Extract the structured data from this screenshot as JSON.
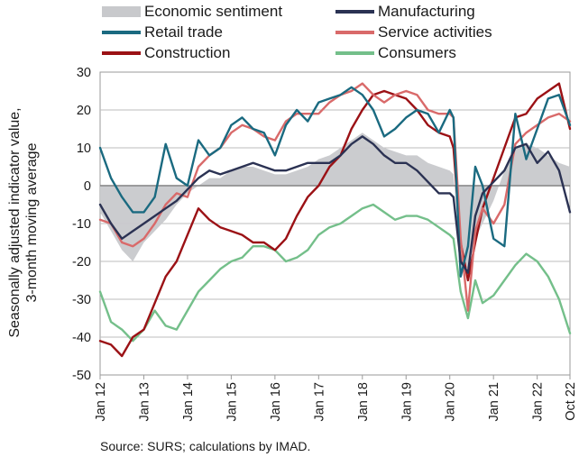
{
  "chart_data": {
    "type": "line",
    "ylabel": "Seasonally adjusted indicator value,\n3-month moving average",
    "xlabel": "",
    "ylim": [
      -50,
      30
    ],
    "yticks": [
      30,
      20,
      10,
      0,
      -10,
      -20,
      -30,
      -40,
      -50
    ],
    "xlim": [
      "2012-01",
      "2022-10"
    ],
    "x_ticks": [
      "Jan 12",
      "Jan 13",
      "Jan 14",
      "Jan 15",
      "Jan 16",
      "Jan 17",
      "Jan 18",
      "Jan 19",
      "Jan 20",
      "Jan 21",
      "Jan 22",
      "Oct 22"
    ],
    "grid": "horizontal",
    "legend_placement": "top",
    "source": "Source: SURS; calculations by IMAD.",
    "series": [
      {
        "name": "Economic sentiment",
        "style": "area",
        "color": "#c8c9cc",
        "points": [
          [
            "2012-01",
            -7
          ],
          [
            "2012-04",
            -12
          ],
          [
            "2012-07",
            -17
          ],
          [
            "2012-10",
            -20
          ],
          [
            "2013-01",
            -15
          ],
          [
            "2013-04",
            -12
          ],
          [
            "2013-07",
            -9
          ],
          [
            "2013-10",
            -5
          ],
          [
            "2014-01",
            -2
          ],
          [
            "2014-04",
            0
          ],
          [
            "2014-07",
            2
          ],
          [
            "2014-10",
            2
          ],
          [
            "2015-01",
            4
          ],
          [
            "2015-04",
            5
          ],
          [
            "2015-07",
            5
          ],
          [
            "2015-10",
            4
          ],
          [
            "2016-01",
            3
          ],
          [
            "2016-04",
            3
          ],
          [
            "2016-07",
            4
          ],
          [
            "2016-10",
            5
          ],
          [
            "2017-01",
            7
          ],
          [
            "2017-04",
            8
          ],
          [
            "2017-07",
            10
          ],
          [
            "2017-10",
            12
          ],
          [
            "2018-01",
            14
          ],
          [
            "2018-04",
            12
          ],
          [
            "2018-07",
            10
          ],
          [
            "2018-10",
            9
          ],
          [
            "2019-01",
            8
          ],
          [
            "2019-04",
            8
          ],
          [
            "2019-07",
            6
          ],
          [
            "2019-10",
            5
          ],
          [
            "2020-01",
            4
          ],
          [
            "2020-02",
            3
          ],
          [
            "2020-04",
            -20
          ],
          [
            "2020-06",
            -22
          ],
          [
            "2020-08",
            -14
          ],
          [
            "2020-10",
            -10
          ],
          [
            "2021-01",
            -4
          ],
          [
            "2021-04",
            4
          ],
          [
            "2021-07",
            10
          ],
          [
            "2021-10",
            11
          ],
          [
            "2022-01",
            10
          ],
          [
            "2022-04",
            8
          ],
          [
            "2022-07",
            6
          ],
          [
            "2022-10",
            5
          ]
        ]
      },
      {
        "name": "Manufacturing",
        "color": "#2b3253",
        "points": [
          [
            "2012-01",
            -5
          ],
          [
            "2012-04",
            -10
          ],
          [
            "2012-07",
            -14
          ],
          [
            "2012-10",
            -12
          ],
          [
            "2013-01",
            -10
          ],
          [
            "2013-04",
            -8
          ],
          [
            "2013-07",
            -6
          ],
          [
            "2013-10",
            -4
          ],
          [
            "2014-01",
            -1
          ],
          [
            "2014-04",
            2
          ],
          [
            "2014-07",
            4
          ],
          [
            "2014-10",
            3
          ],
          [
            "2015-01",
            4
          ],
          [
            "2015-04",
            5
          ],
          [
            "2015-07",
            6
          ],
          [
            "2015-10",
            5
          ],
          [
            "2016-01",
            4
          ],
          [
            "2016-04",
            4
          ],
          [
            "2016-07",
            5
          ],
          [
            "2016-10",
            6
          ],
          [
            "2017-01",
            6
          ],
          [
            "2017-04",
            6
          ],
          [
            "2017-07",
            8
          ],
          [
            "2017-10",
            11
          ],
          [
            "2018-01",
            13
          ],
          [
            "2018-04",
            11
          ],
          [
            "2018-07",
            8
          ],
          [
            "2018-10",
            6
          ],
          [
            "2019-01",
            6
          ],
          [
            "2019-04",
            4
          ],
          [
            "2019-07",
            1
          ],
          [
            "2019-10",
            -2
          ],
          [
            "2020-01",
            -2
          ],
          [
            "2020-02",
            -3
          ],
          [
            "2020-04",
            -20
          ],
          [
            "2020-06",
            -23
          ],
          [
            "2020-08",
            -8
          ],
          [
            "2020-10",
            -2
          ],
          [
            "2021-01",
            1
          ],
          [
            "2021-04",
            4
          ],
          [
            "2021-07",
            10
          ],
          [
            "2021-10",
            11
          ],
          [
            "2022-01",
            6
          ],
          [
            "2022-04",
            9
          ],
          [
            "2022-07",
            4
          ],
          [
            "2022-10",
            -7
          ]
        ]
      },
      {
        "name": "Retail trade",
        "color": "#1a6a80",
        "points": [
          [
            "2012-01",
            10
          ],
          [
            "2012-04",
            2
          ],
          [
            "2012-07",
            -3
          ],
          [
            "2012-10",
            -7
          ],
          [
            "2013-01",
            -7
          ],
          [
            "2013-04",
            -3
          ],
          [
            "2013-07",
            11
          ],
          [
            "2013-10",
            2
          ],
          [
            "2014-01",
            0
          ],
          [
            "2014-04",
            12
          ],
          [
            "2014-07",
            8
          ],
          [
            "2014-10",
            10
          ],
          [
            "2015-01",
            16
          ],
          [
            "2015-04",
            18
          ],
          [
            "2015-07",
            15
          ],
          [
            "2015-10",
            14
          ],
          [
            "2016-01",
            8
          ],
          [
            "2016-04",
            16
          ],
          [
            "2016-07",
            20
          ],
          [
            "2016-10",
            17
          ],
          [
            "2017-01",
            22
          ],
          [
            "2017-04",
            23
          ],
          [
            "2017-07",
            24
          ],
          [
            "2017-10",
            26
          ],
          [
            "2018-01",
            24
          ],
          [
            "2018-04",
            20
          ],
          [
            "2018-07",
            13
          ],
          [
            "2018-10",
            15
          ],
          [
            "2019-01",
            18
          ],
          [
            "2019-04",
            20
          ],
          [
            "2019-07",
            19
          ],
          [
            "2019-10",
            14
          ],
          [
            "2020-01",
            20
          ],
          [
            "2020-02",
            18
          ],
          [
            "2020-04",
            -24
          ],
          [
            "2020-06",
            -16
          ],
          [
            "2020-08",
            5
          ],
          [
            "2020-10",
            0
          ],
          [
            "2021-01",
            -14
          ],
          [
            "2021-04",
            -16
          ],
          [
            "2021-07",
            19
          ],
          [
            "2021-10",
            7
          ],
          [
            "2022-01",
            15
          ],
          [
            "2022-04",
            23
          ],
          [
            "2022-07",
            24
          ],
          [
            "2022-10",
            16
          ]
        ]
      },
      {
        "name": "Service activities",
        "color": "#d96a6a",
        "points": [
          [
            "2012-01",
            -9
          ],
          [
            "2012-04",
            -10
          ],
          [
            "2012-07",
            -15
          ],
          [
            "2012-10",
            -16
          ],
          [
            "2013-01",
            -14
          ],
          [
            "2013-04",
            -10
          ],
          [
            "2013-07",
            -5
          ],
          [
            "2013-10",
            -2
          ],
          [
            "2014-01",
            -3
          ],
          [
            "2014-04",
            5
          ],
          [
            "2014-07",
            8
          ],
          [
            "2014-10",
            10
          ],
          [
            "2015-01",
            14
          ],
          [
            "2015-04",
            16
          ],
          [
            "2015-07",
            15
          ],
          [
            "2015-10",
            13
          ],
          [
            "2016-01",
            12
          ],
          [
            "2016-04",
            17
          ],
          [
            "2016-07",
            19
          ],
          [
            "2016-10",
            19
          ],
          [
            "2017-01",
            19
          ],
          [
            "2017-04",
            22
          ],
          [
            "2017-07",
            24
          ],
          [
            "2017-10",
            25
          ],
          [
            "2018-01",
            27
          ],
          [
            "2018-04",
            24
          ],
          [
            "2018-07",
            22
          ],
          [
            "2018-10",
            24
          ],
          [
            "2019-01",
            25
          ],
          [
            "2019-04",
            24
          ],
          [
            "2019-07",
            20
          ],
          [
            "2019-10",
            19
          ],
          [
            "2020-01",
            19
          ],
          [
            "2020-02",
            18
          ],
          [
            "2020-04",
            -14
          ],
          [
            "2020-06",
            -33
          ],
          [
            "2020-08",
            -12
          ],
          [
            "2020-10",
            -6
          ],
          [
            "2021-01",
            -10
          ],
          [
            "2021-04",
            -5
          ],
          [
            "2021-07",
            11
          ],
          [
            "2021-10",
            14
          ],
          [
            "2022-01",
            16
          ],
          [
            "2022-04",
            18
          ],
          [
            "2022-07",
            19
          ],
          [
            "2022-10",
            17
          ]
        ]
      },
      {
        "name": "Construction",
        "color": "#9b1115",
        "points": [
          [
            "2012-01",
            -41
          ],
          [
            "2012-04",
            -42
          ],
          [
            "2012-07",
            -45
          ],
          [
            "2012-10",
            -40
          ],
          [
            "2013-01",
            -38
          ],
          [
            "2013-04",
            -31
          ],
          [
            "2013-07",
            -24
          ],
          [
            "2013-10",
            -20
          ],
          [
            "2014-01",
            -13
          ],
          [
            "2014-04",
            -6
          ],
          [
            "2014-07",
            -9
          ],
          [
            "2014-10",
            -11
          ],
          [
            "2015-01",
            -12
          ],
          [
            "2015-04",
            -13
          ],
          [
            "2015-07",
            -15
          ],
          [
            "2015-10",
            -15
          ],
          [
            "2016-01",
            -17
          ],
          [
            "2016-04",
            -14
          ],
          [
            "2016-07",
            -8
          ],
          [
            "2016-10",
            -3
          ],
          [
            "2017-01",
            0
          ],
          [
            "2017-04",
            5
          ],
          [
            "2017-07",
            8
          ],
          [
            "2017-10",
            15
          ],
          [
            "2018-01",
            20
          ],
          [
            "2018-04",
            24
          ],
          [
            "2018-07",
            25
          ],
          [
            "2018-10",
            24
          ],
          [
            "2019-01",
            23
          ],
          [
            "2019-04",
            20
          ],
          [
            "2019-07",
            16
          ],
          [
            "2019-10",
            14
          ],
          [
            "2020-01",
            13
          ],
          [
            "2020-02",
            10
          ],
          [
            "2020-04",
            -15
          ],
          [
            "2020-06",
            -25
          ],
          [
            "2020-08",
            -15
          ],
          [
            "2020-10",
            -6
          ],
          [
            "2021-01",
            2
          ],
          [
            "2021-04",
            10
          ],
          [
            "2021-07",
            18
          ],
          [
            "2021-10",
            19
          ],
          [
            "2022-01",
            23
          ],
          [
            "2022-04",
            25
          ],
          [
            "2022-07",
            27
          ],
          [
            "2022-10",
            15
          ]
        ]
      },
      {
        "name": "Consumers",
        "color": "#74bf8a",
        "points": [
          [
            "2012-01",
            -28
          ],
          [
            "2012-04",
            -36
          ],
          [
            "2012-07",
            -38
          ],
          [
            "2012-10",
            -41
          ],
          [
            "2013-01",
            -38
          ],
          [
            "2013-04",
            -33
          ],
          [
            "2013-07",
            -37
          ],
          [
            "2013-10",
            -38
          ],
          [
            "2014-01",
            -33
          ],
          [
            "2014-04",
            -28
          ],
          [
            "2014-07",
            -25
          ],
          [
            "2014-10",
            -22
          ],
          [
            "2015-01",
            -20
          ],
          [
            "2015-04",
            -19
          ],
          [
            "2015-07",
            -16
          ],
          [
            "2015-10",
            -16
          ],
          [
            "2016-01",
            -17
          ],
          [
            "2016-04",
            -20
          ],
          [
            "2016-07",
            -19
          ],
          [
            "2016-10",
            -17
          ],
          [
            "2017-01",
            -13
          ],
          [
            "2017-04",
            -11
          ],
          [
            "2017-07",
            -10
          ],
          [
            "2017-10",
            -8
          ],
          [
            "2018-01",
            -6
          ],
          [
            "2018-04",
            -5
          ],
          [
            "2018-07",
            -7
          ],
          [
            "2018-10",
            -9
          ],
          [
            "2019-01",
            -8
          ],
          [
            "2019-04",
            -8
          ],
          [
            "2019-07",
            -9
          ],
          [
            "2019-10",
            -11
          ],
          [
            "2020-01",
            -13
          ],
          [
            "2020-02",
            -14
          ],
          [
            "2020-04",
            -28
          ],
          [
            "2020-06",
            -35
          ],
          [
            "2020-08",
            -25
          ],
          [
            "2020-10",
            -31
          ],
          [
            "2021-01",
            -29
          ],
          [
            "2021-04",
            -25
          ],
          [
            "2021-07",
            -21
          ],
          [
            "2021-10",
            -18
          ],
          [
            "2022-01",
            -20
          ],
          [
            "2022-04",
            -24
          ],
          [
            "2022-07",
            -30
          ],
          [
            "2022-10",
            -39
          ]
        ]
      }
    ]
  }
}
